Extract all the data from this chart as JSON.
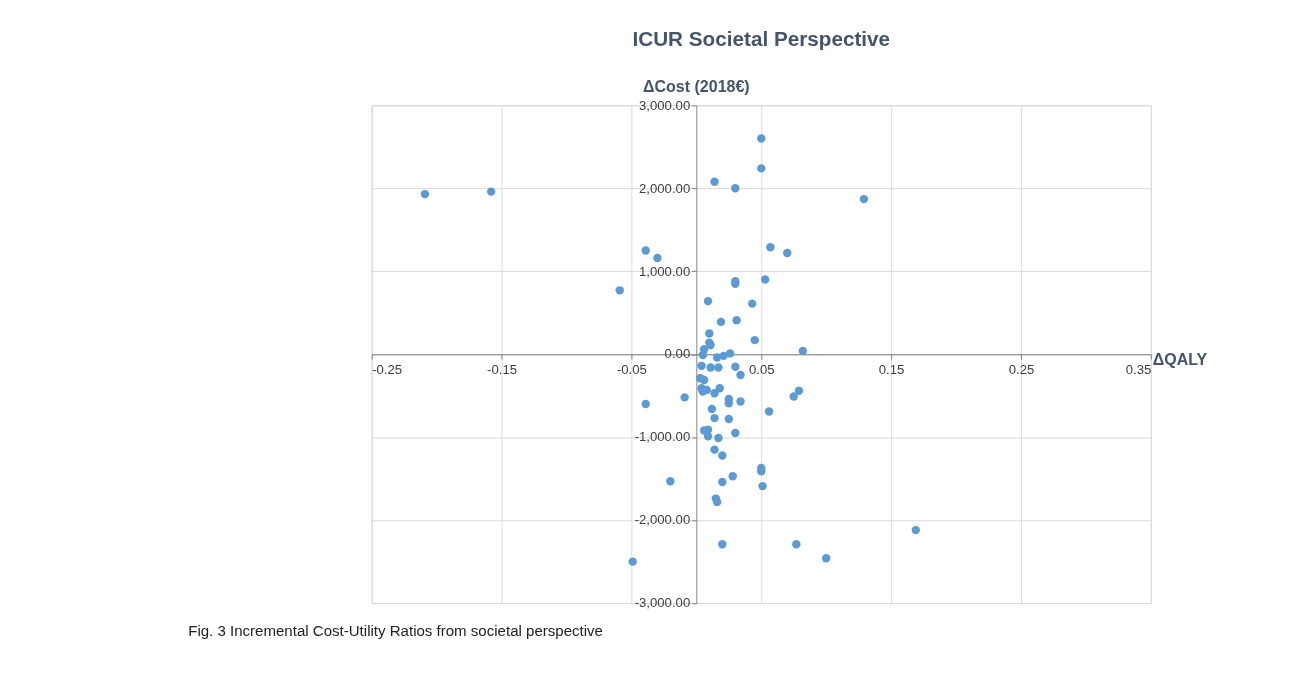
{
  "chart_data": {
    "type": "scatter",
    "title": "ICUR Societal Perspective",
    "xlabel": "ΔQALY",
    "ylabel": "ΔCost (2018€)",
    "annotations": [
      "Fig. 3 Incremental Cost-Utility Ratios from societal perspective"
    ],
    "x": [
      -0.209,
      -0.158,
      0.014,
      0.03,
      0.05,
      0.05,
      0.129,
      -0.039,
      -0.03,
      0.057,
      0.07,
      -0.059,
      0.03,
      0.03,
      0.053,
      0.009,
      0.043,
      0.019,
      0.031,
      0.01,
      0.045,
      0.01,
      0.011,
      0.006,
      0.005,
      0.016,
      0.021,
      0.026,
      0.082,
      0.004,
      0.011,
      0.017,
      0.03,
      0.034,
      0.003,
      0.006,
      0.004,
      0.008,
      0.014,
      0.018,
      0.005,
      -0.009,
      0.025,
      0.025,
      0.034,
      0.075,
      0.079,
      0.056,
      0.012,
      0.014,
      0.025,
      0.006,
      0.009,
      0.009,
      0.017,
      0.03,
      0.014,
      0.02,
      0.05,
      0.05,
      0.028,
      0.02,
      0.051,
      0.015,
      0.016,
      0.02,
      0.077,
      0.1,
      -0.02,
      -0.039,
      -0.049,
      0.169
    ],
    "series": [
      {
        "color": "#5b9bd5",
        "values": [
          1930,
          1960,
          2080,
          2000,
          2600,
          2240,
          1870,
          1250,
          1160,
          1290,
          1220,
          770,
          880,
          850,
          900,
          640,
          610,
          390,
          410,
          250,
          170,
          140,
          110,
          60,
          -10,
          -40,
          -20,
          10,
          40,
          -140,
          -160,
          -160,
          -150,
          -250,
          -290,
          -310,
          -410,
          -430,
          -470,
          -410,
          -450,
          -520,
          -540,
          -590,
          -570,
          -510,
          -440,
          -690,
          -660,
          -770,
          -780,
          -920,
          -910,
          -990,
          -1010,
          -950,
          -1150,
          -1220,
          -1370,
          -1410,
          -1470,
          -1540,
          -1590,
          -1740,
          -1780,
          -2290,
          -2290,
          -2460,
          -1530,
          -600,
          -2500,
          -2120
        ]
      }
    ],
    "xlim": [
      -0.25,
      0.35
    ],
    "xticks": [
      {
        "value": -0.25,
        "label": "-0.25"
      },
      {
        "value": -0.15,
        "label": "-0.15"
      },
      {
        "value": -0.05,
        "label": "-0.05"
      },
      {
        "value": 0.05,
        "label": "0.05"
      },
      {
        "value": 0.15,
        "label": "0.15"
      },
      {
        "value": 0.25,
        "label": "0.25"
      },
      {
        "value": 0.35,
        "label": "0.35"
      }
    ],
    "ylim": [
      -3000,
      3000
    ],
    "yticks": [
      {
        "value": -3000,
        "label": "-3,000.00"
      },
      {
        "value": -2000,
        "label": "-2,000.00"
      },
      {
        "value": -1000,
        "label": "-1,000.00"
      },
      {
        "value": 0,
        "label": "0.00"
      },
      {
        "value": 1000,
        "label": "1,000.00"
      },
      {
        "value": 2000,
        "label": "2,000.00"
      },
      {
        "value": 3000,
        "label": "3,000.00"
      }
    ],
    "grid": true,
    "marker": "circle"
  }
}
